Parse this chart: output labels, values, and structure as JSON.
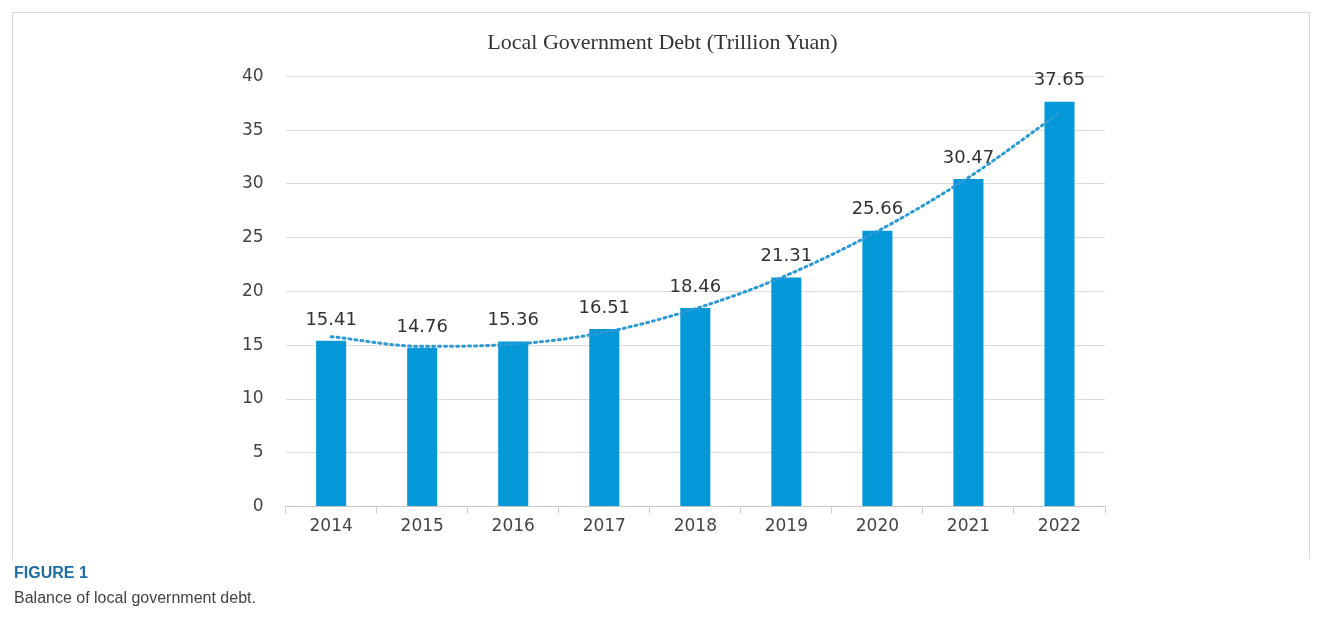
{
  "chart_data": {
    "type": "bar",
    "title": "Local Government Debt (Trillion Yuan)",
    "categories": [
      "2014",
      "2015",
      "2016",
      "2017",
      "2018",
      "2019",
      "2020",
      "2021",
      "2022"
    ],
    "series": [
      {
        "color": "#0598d8",
        "values": [
          15.41,
          14.76,
          15.36,
          16.51,
          18.46,
          21.31,
          25.66,
          30.47,
          37.65
        ],
        "value_labels": [
          "15.41",
          "14.76",
          "15.36",
          "16.51",
          "18.46",
          "21.31",
          "25.66",
          "30.47",
          "37.65"
        ]
      },
      {
        "type": "line",
        "color": "#2c9ad6",
        "values": [
          15.8,
          14.9,
          15.1,
          16.2,
          18.4,
          21.5,
          25.6,
          30.6,
          36.6
        ],
        "line_style": "dotted",
        "marker": "none"
      }
    ],
    "ylim": [
      0,
      40
    ],
    "yticks": [
      0,
      5,
      10,
      15,
      20,
      25,
      30,
      35,
      40
    ],
    "grid": "y",
    "legend": false,
    "annotations": [
      "FIGURE 1",
      "Balance of local government debt."
    ]
  }
}
